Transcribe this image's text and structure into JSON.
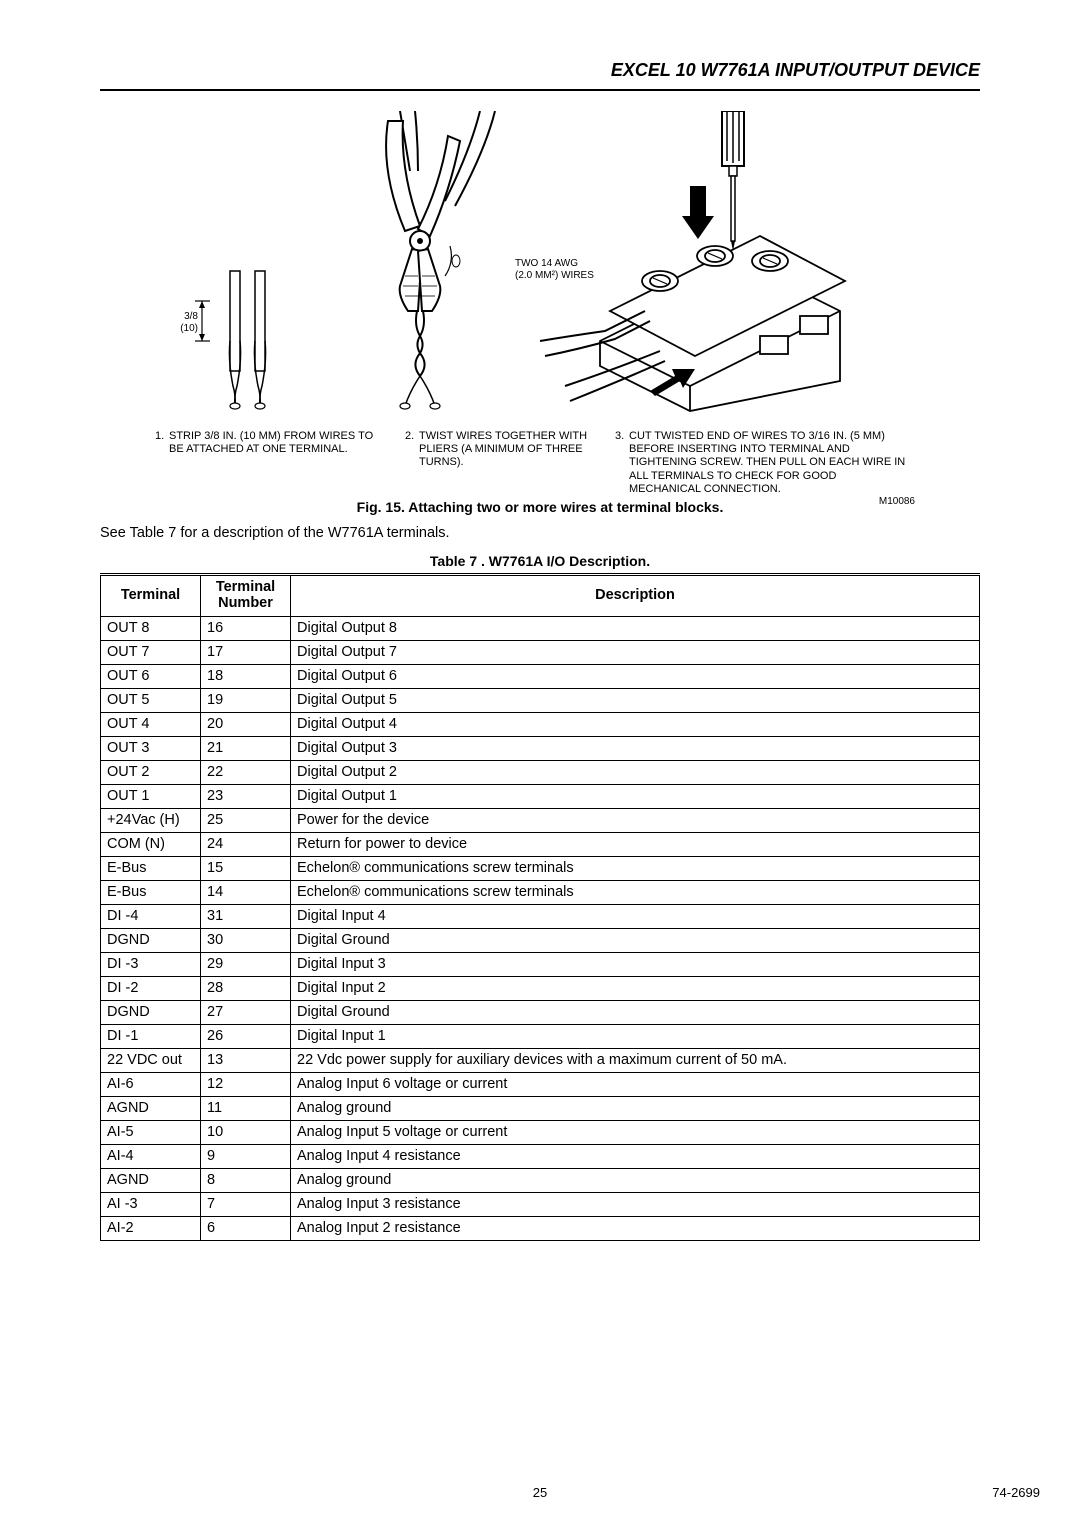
{
  "header": {
    "title": "EXCEL 10 W7761A INPUT/OUTPUT DEVICE"
  },
  "diagram": {
    "strip_dim_top": "3/8",
    "strip_dim_bottom": "(10)",
    "wire_label_line1": "TWO 14 AWG",
    "wire_label_line2": "(2.0 MM²) WIRES",
    "caption1_num": "1.",
    "caption1_text": "STRIP 3/8 IN. (10 MM) FROM WIRES TO BE ATTACHED AT ONE TERMINAL.",
    "caption2_num": "2.",
    "caption2_text": "TWIST WIRES TOGETHER WITH PLIERS (A MINIMUM OF THREE TURNS).",
    "caption3_num": "3.",
    "caption3_text": "CUT TWISTED END OF WIRES TO 3/16 IN. (5 MM) BEFORE INSERTING INTO TERMINAL AND TIGHTENING SCREW. THEN PULL ON EACH WIRE IN ALL TERMINALS TO CHECK FOR GOOD MECHANICAL CONNECTION.",
    "mref": "M10086"
  },
  "fig_caption": "Fig. 15. Attaching two or more wires at terminal blocks.",
  "intro_text": "See Table 7 for a description of the W7761A terminals.",
  "table_caption": "Table 7 . W7761A I/O Description.",
  "table": {
    "headers": {
      "terminal": "Terminal",
      "number": "Terminal Number",
      "description": "Description"
    },
    "rows": [
      {
        "t": "OUT 8",
        "n": "16",
        "d": "Digital Output 8"
      },
      {
        "t": "OUT 7",
        "n": "17",
        "d": "Digital Output 7"
      },
      {
        "t": "OUT 6",
        "n": "18",
        "d": "Digital Output 6"
      },
      {
        "t": "OUT 5",
        "n": "19",
        "d": "Digital Output 5"
      },
      {
        "t": "OUT 4",
        "n": "20",
        "d": "Digital Output 4"
      },
      {
        "t": "OUT 3",
        "n": "21",
        "d": "Digital Output 3"
      },
      {
        "t": "OUT 2",
        "n": "22",
        "d": "Digital Output 2"
      },
      {
        "t": "OUT 1",
        "n": "23",
        "d": "Digital Output 1"
      },
      {
        "t": "+24Vac (H)",
        "n": "25",
        "d": "Power for the device"
      },
      {
        "t": "COM (N)",
        "n": "24",
        "d": "Return for power to device"
      },
      {
        "t": "E-Bus",
        "n": "15",
        "d": "Echelon® communications screw terminals"
      },
      {
        "t": "E-Bus",
        "n": "14",
        "d": "Echelon® communications screw terminals"
      },
      {
        "t": "DI -4",
        "n": "31",
        "d": "Digital Input 4"
      },
      {
        "t": "DGND",
        "n": "30",
        "d": "Digital Ground"
      },
      {
        "t": "DI -3",
        "n": "29",
        "d": "Digital Input 3"
      },
      {
        "t": "DI -2",
        "n": "28",
        "d": "Digital Input 2"
      },
      {
        "t": "DGND",
        "n": "27",
        "d": "Digital Ground"
      },
      {
        "t": "DI -1",
        "n": "26",
        "d": "Digital Input 1"
      },
      {
        "t": "22 VDC out",
        "n": "13",
        "d": "22 Vdc power supply for auxiliary devices with a maximum current of 50 mA."
      },
      {
        "t": "AI-6",
        "n": "12",
        "d": "Analog Input 6 voltage or current"
      },
      {
        "t": "AGND",
        "n": "11",
        "d": "Analog ground"
      },
      {
        "t": "AI-5",
        "n": "10",
        "d": "Analog Input 5 voltage or current"
      },
      {
        "t": "AI-4",
        "n": "9",
        "d": "Analog Input 4 resistance"
      },
      {
        "t": "AGND",
        "n": "8",
        "d": "Analog ground"
      },
      {
        "t": "AI -3",
        "n": "7",
        "d": "Analog Input 3 resistance"
      },
      {
        "t": "AI-2",
        "n": "6",
        "d": "Analog Input 2 resistance"
      }
    ]
  },
  "footer": {
    "page": "25",
    "doc": "74-2699"
  }
}
